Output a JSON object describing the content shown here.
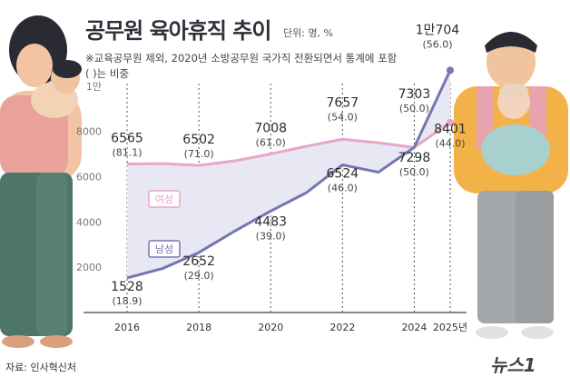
{
  "title": "공무원 육아휴직 추이",
  "unit": "단위: 명, %",
  "notes": [
    "※교육공무원 제외, 2020년 소방공무원 국가직 전환되면서 통계에 포함",
    "( )는 비중"
  ],
  "source": "자료: 인사혁신처",
  "logo": "뉴스1",
  "colors": {
    "female": "#e6a6c8",
    "male": "#7775b2",
    "fill": "#e7e8f3",
    "text": "#333333"
  },
  "chart_data": {
    "type": "area",
    "title": "공무원 육아휴직 추이",
    "xlabel": "",
    "ylabel": "",
    "x": [
      "2016",
      "2017",
      "2018",
      "2019",
      "2020",
      "2021",
      "2022",
      "2023",
      "2024",
      "2025년"
    ],
    "ylim": [
      0,
      11000
    ],
    "y_ticks": [
      2000,
      4000,
      6000,
      8000,
      10000
    ],
    "y_tick_labels": [
      "2000",
      "4000",
      "6000",
      "8000",
      "1만"
    ],
    "x_tick_labels": [
      "2016",
      "2018",
      "2020",
      "2022",
      "2024",
      "2025년"
    ],
    "grid": true,
    "series": [
      {
        "name": "여성",
        "values": [
          6565,
          6580,
          6502,
          6700,
          7008,
          7350,
          7657,
          7500,
          7298,
          8401
        ]
      },
      {
        "name": "남성",
        "values": [
          1528,
          1950,
          2652,
          3600,
          4483,
          5300,
          6524,
          6200,
          7303,
          10704
        ]
      }
    ],
    "data_labels": [
      {
        "series": "여성",
        "x": "2016",
        "value": "6565",
        "pct": "(81.1)"
      },
      {
        "series": "여성",
        "x": "2018",
        "value": "6502",
        "pct": "(71.0)"
      },
      {
        "series": "여성",
        "x": "2020",
        "value": "7008",
        "pct": "(61.0)"
      },
      {
        "series": "여성",
        "x": "2022",
        "value": "7657",
        "pct": "(54.0)"
      },
      {
        "series": "여성",
        "x": "2024",
        "value": "7298",
        "pct": "(50.0)"
      },
      {
        "series": "여성",
        "x": "2025년",
        "value": "8401",
        "pct": "(44.0)"
      },
      {
        "series": "남성",
        "x": "2016",
        "value": "1528",
        "pct": "(18.9)"
      },
      {
        "series": "남성",
        "x": "2018",
        "value": "2652",
        "pct": "(29.0)"
      },
      {
        "series": "남성",
        "x": "2020",
        "value": "4483",
        "pct": "(39.0)"
      },
      {
        "series": "남성",
        "x": "2022",
        "value": "6524",
        "pct": "(46.0)"
      },
      {
        "series": "남성",
        "x": "2024",
        "value": "7303",
        "pct": "(50.0)"
      },
      {
        "series": "남성",
        "x": "2025년",
        "value": "1만704",
        "pct": "(56.0)"
      }
    ]
  }
}
